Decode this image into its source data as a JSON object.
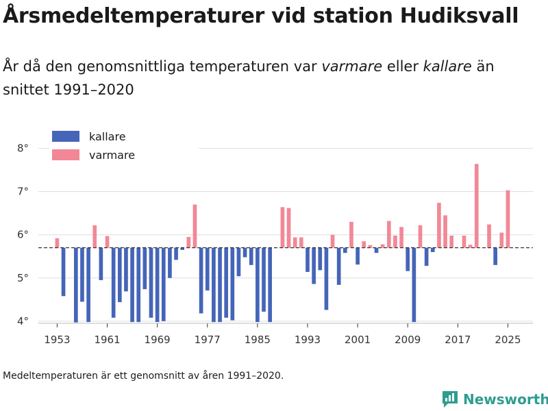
{
  "header": {
    "title": "Årsmedeltemperaturer vid station Hudiksvall",
    "subtitle_part1": "År då den genomsnittliga temperaturen var ",
    "subtitle_emph1": "varmare",
    "subtitle_part2": " eller ",
    "subtitle_emph2": "kallare",
    "subtitle_part3": " än snittet 1991–2020"
  },
  "footnote": "Medeltemperaturen är ett genomsnitt av åren 1991–2020.",
  "brand": {
    "name": "Newsworthy",
    "color": "#2f9d8f"
  },
  "colors": {
    "warmer": "#f28896",
    "colder": "#4565b8",
    "grid": "#dddddd",
    "baseline": "#333333"
  },
  "chart_data": {
    "type": "bar",
    "title": "Årsmedeltemperaturer vid station Hudiksvall",
    "xlabel": "",
    "ylabel": "",
    "baseline": 5.7,
    "ylim": [
      3.95,
      8.2
    ],
    "yticks": [
      4,
      5,
      6,
      7,
      8
    ],
    "ytick_labels": [
      "4°",
      "5°",
      "6°",
      "7°",
      "8°"
    ],
    "xlim": [
      1950,
      2029
    ],
    "xticks": [
      1953,
      1961,
      1969,
      1977,
      1985,
      1993,
      2001,
      2009,
      2017,
      2025
    ],
    "xtick_labels": [
      "1953",
      "1961",
      "1969",
      "1977",
      "1985",
      "1993",
      "2001",
      "2009",
      "2017",
      "2025"
    ],
    "legend": [
      {
        "key": "colder",
        "label": "kallare"
      },
      {
        "key": "warmer",
        "label": "varmare"
      }
    ],
    "legend_position": "top-left",
    "series": [
      {
        "name": "Årsmedeltemperatur",
        "x": [
          1953,
          1954,
          1955,
          1956,
          1957,
          1958,
          1959,
          1960,
          1961,
          1962,
          1963,
          1964,
          1965,
          1966,
          1967,
          1968,
          1969,
          1970,
          1971,
          1972,
          1973,
          1974,
          1975,
          1976,
          1977,
          1978,
          1979,
          1980,
          1981,
          1982,
          1983,
          1984,
          1985,
          1986,
          1987,
          1988,
          1989,
          1990,
          1991,
          1992,
          1993,
          1994,
          1995,
          1996,
          1997,
          1998,
          1999,
          2000,
          2001,
          2002,
          2003,
          2004,
          2005,
          2006,
          2007,
          2008,
          2009,
          2010,
          2011,
          2012,
          2013,
          2014,
          2015,
          2016,
          2017,
          2018,
          2019,
          2020,
          2021,
          2022,
          2023,
          2024,
          2025
        ],
        "values": [
          5.92,
          4.58,
          5.7,
          3.97,
          4.45,
          3.98,
          6.22,
          4.95,
          5.97,
          4.08,
          4.44,
          4.69,
          3.98,
          3.98,
          4.74,
          4.08,
          3.98,
          4.0,
          5.0,
          5.42,
          5.65,
          5.95,
          6.7,
          4.18,
          4.71,
          3.98,
          3.98,
          4.08,
          4.02,
          5.04,
          5.48,
          5.3,
          3.98,
          4.22,
          3.98,
          5.7,
          6.64,
          6.62,
          5.94,
          5.94,
          5.14,
          4.86,
          5.18,
          4.26,
          6.0,
          4.84,
          5.58,
          6.3,
          5.31,
          5.85,
          5.76,
          5.58,
          5.78,
          6.32,
          5.98,
          6.18,
          5.16,
          3.98,
          6.22,
          5.28,
          5.6,
          6.74,
          6.45,
          5.98,
          5.7,
          5.98,
          5.77,
          7.64,
          5.7,
          6.24,
          5.3,
          6.05,
          7.03
        ]
      }
    ]
  }
}
